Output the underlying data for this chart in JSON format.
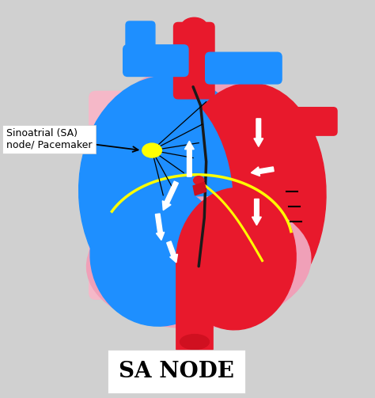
{
  "background_color": "#d0d0d0",
  "title": "SA NODE",
  "title_fontsize": 20,
  "title_fontweight": "bold",
  "label_text": "Sinoatrial (SA)\nnode/ Pacemaker",
  "label_fontsize": 9,
  "colors": {
    "red": "#e8192c",
    "blue": "#1e8fff",
    "pink": "#f0a0b8",
    "pink_tube": "#f5b8c8",
    "pink_cap": "#f0b0c0",
    "yellow": "#ffff00",
    "white": "#ffffff",
    "black": "#000000",
    "dark_red": "#cc1020"
  }
}
